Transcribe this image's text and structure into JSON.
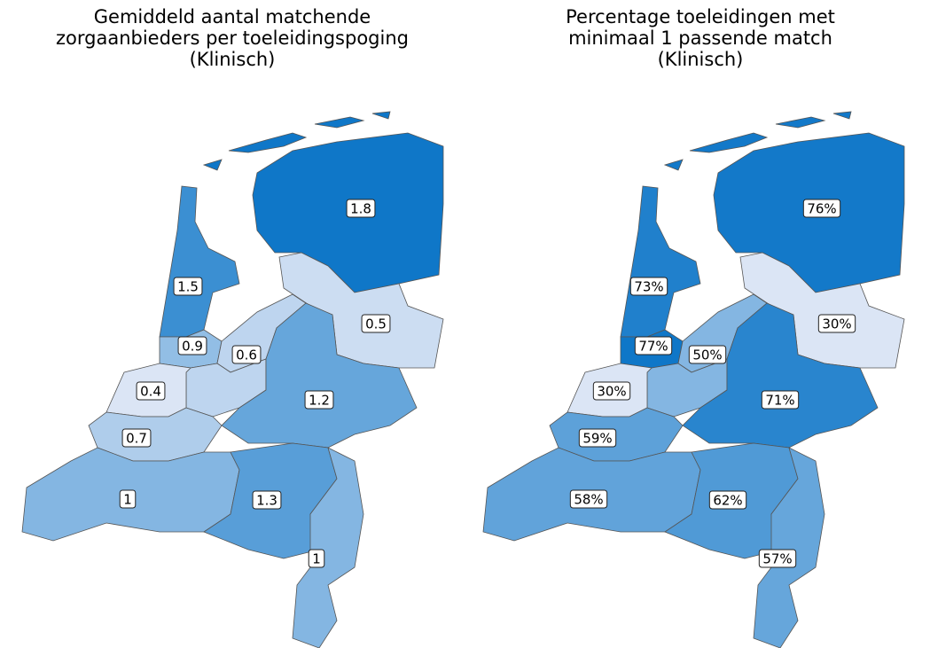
{
  "maps": [
    {
      "title": [
        "Gemiddeld aantal matchende",
        "zorgaanbieders per toeleidingspoging",
        "(Klinisch)"
      ],
      "values": [
        1.8,
        1.5,
        0.9,
        0.6,
        0.5,
        1.2,
        0.4,
        0.7,
        1,
        1.3,
        1
      ]
    },
    {
      "title": [
        "Percentage toeleidingen met",
        "minimaal 1 passende match",
        "(Klinisch)"
      ],
      "values": [
        76,
        73,
        77,
        50,
        30,
        71,
        30,
        59,
        58,
        62,
        57
      ],
      "value_labels": [
        "76%",
        "73%",
        "77%",
        "50%",
        "30%",
        "71%",
        "30%",
        "59%",
        "58%",
        "62%",
        "57%"
      ]
    }
  ],
  "color_low": "#dbe5f5",
  "color_high": "#0f77c8"
}
